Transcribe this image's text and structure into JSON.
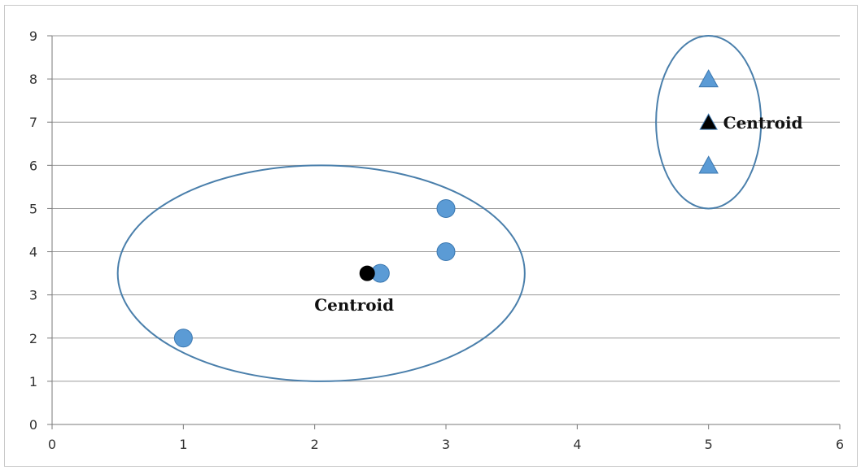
{
  "chart_data": {
    "type": "scatter",
    "title": "",
    "xlabel": "",
    "ylabel": "",
    "xlim": [
      0,
      6
    ],
    "ylim": [
      0,
      9
    ],
    "x_ticks": [
      0,
      1,
      2,
      3,
      4,
      5,
      6
    ],
    "y_ticks": [
      0,
      1,
      2,
      3,
      4,
      5,
      6,
      7,
      8,
      9
    ],
    "grid": "horizontal",
    "legend": "none",
    "series": [
      {
        "marker": "circle",
        "color": "#5b9bd5",
        "points": [
          {
            "x": 1,
            "y": 2
          },
          {
            "x": 2.5,
            "y": 3.5
          },
          {
            "x": 3,
            "y": 4
          },
          {
            "x": 3,
            "y": 5
          }
        ]
      },
      {
        "marker": "triangle",
        "color": "#5b9bd5",
        "points": [
          {
            "x": 5,
            "y": 6
          },
          {
            "x": 5,
            "y": 8
          }
        ]
      }
    ],
    "centroids": [
      {
        "marker": "circle",
        "color": "#000000",
        "x": 2.4,
        "y": 3.5,
        "label": "Centroid"
      },
      {
        "marker": "triangle",
        "color": "#000000",
        "x": 5,
        "y": 7,
        "label": "Centroid"
      }
    ],
    "clusters": [
      {
        "cx": 2.05,
        "cy": 3.5,
        "rx": 1.55,
        "ry": 2.5,
        "color": "#4a7fab"
      },
      {
        "cx": 5,
        "cy": 7,
        "rx": 0.4,
        "ry": 2,
        "color": "#4a7fab"
      }
    ]
  }
}
